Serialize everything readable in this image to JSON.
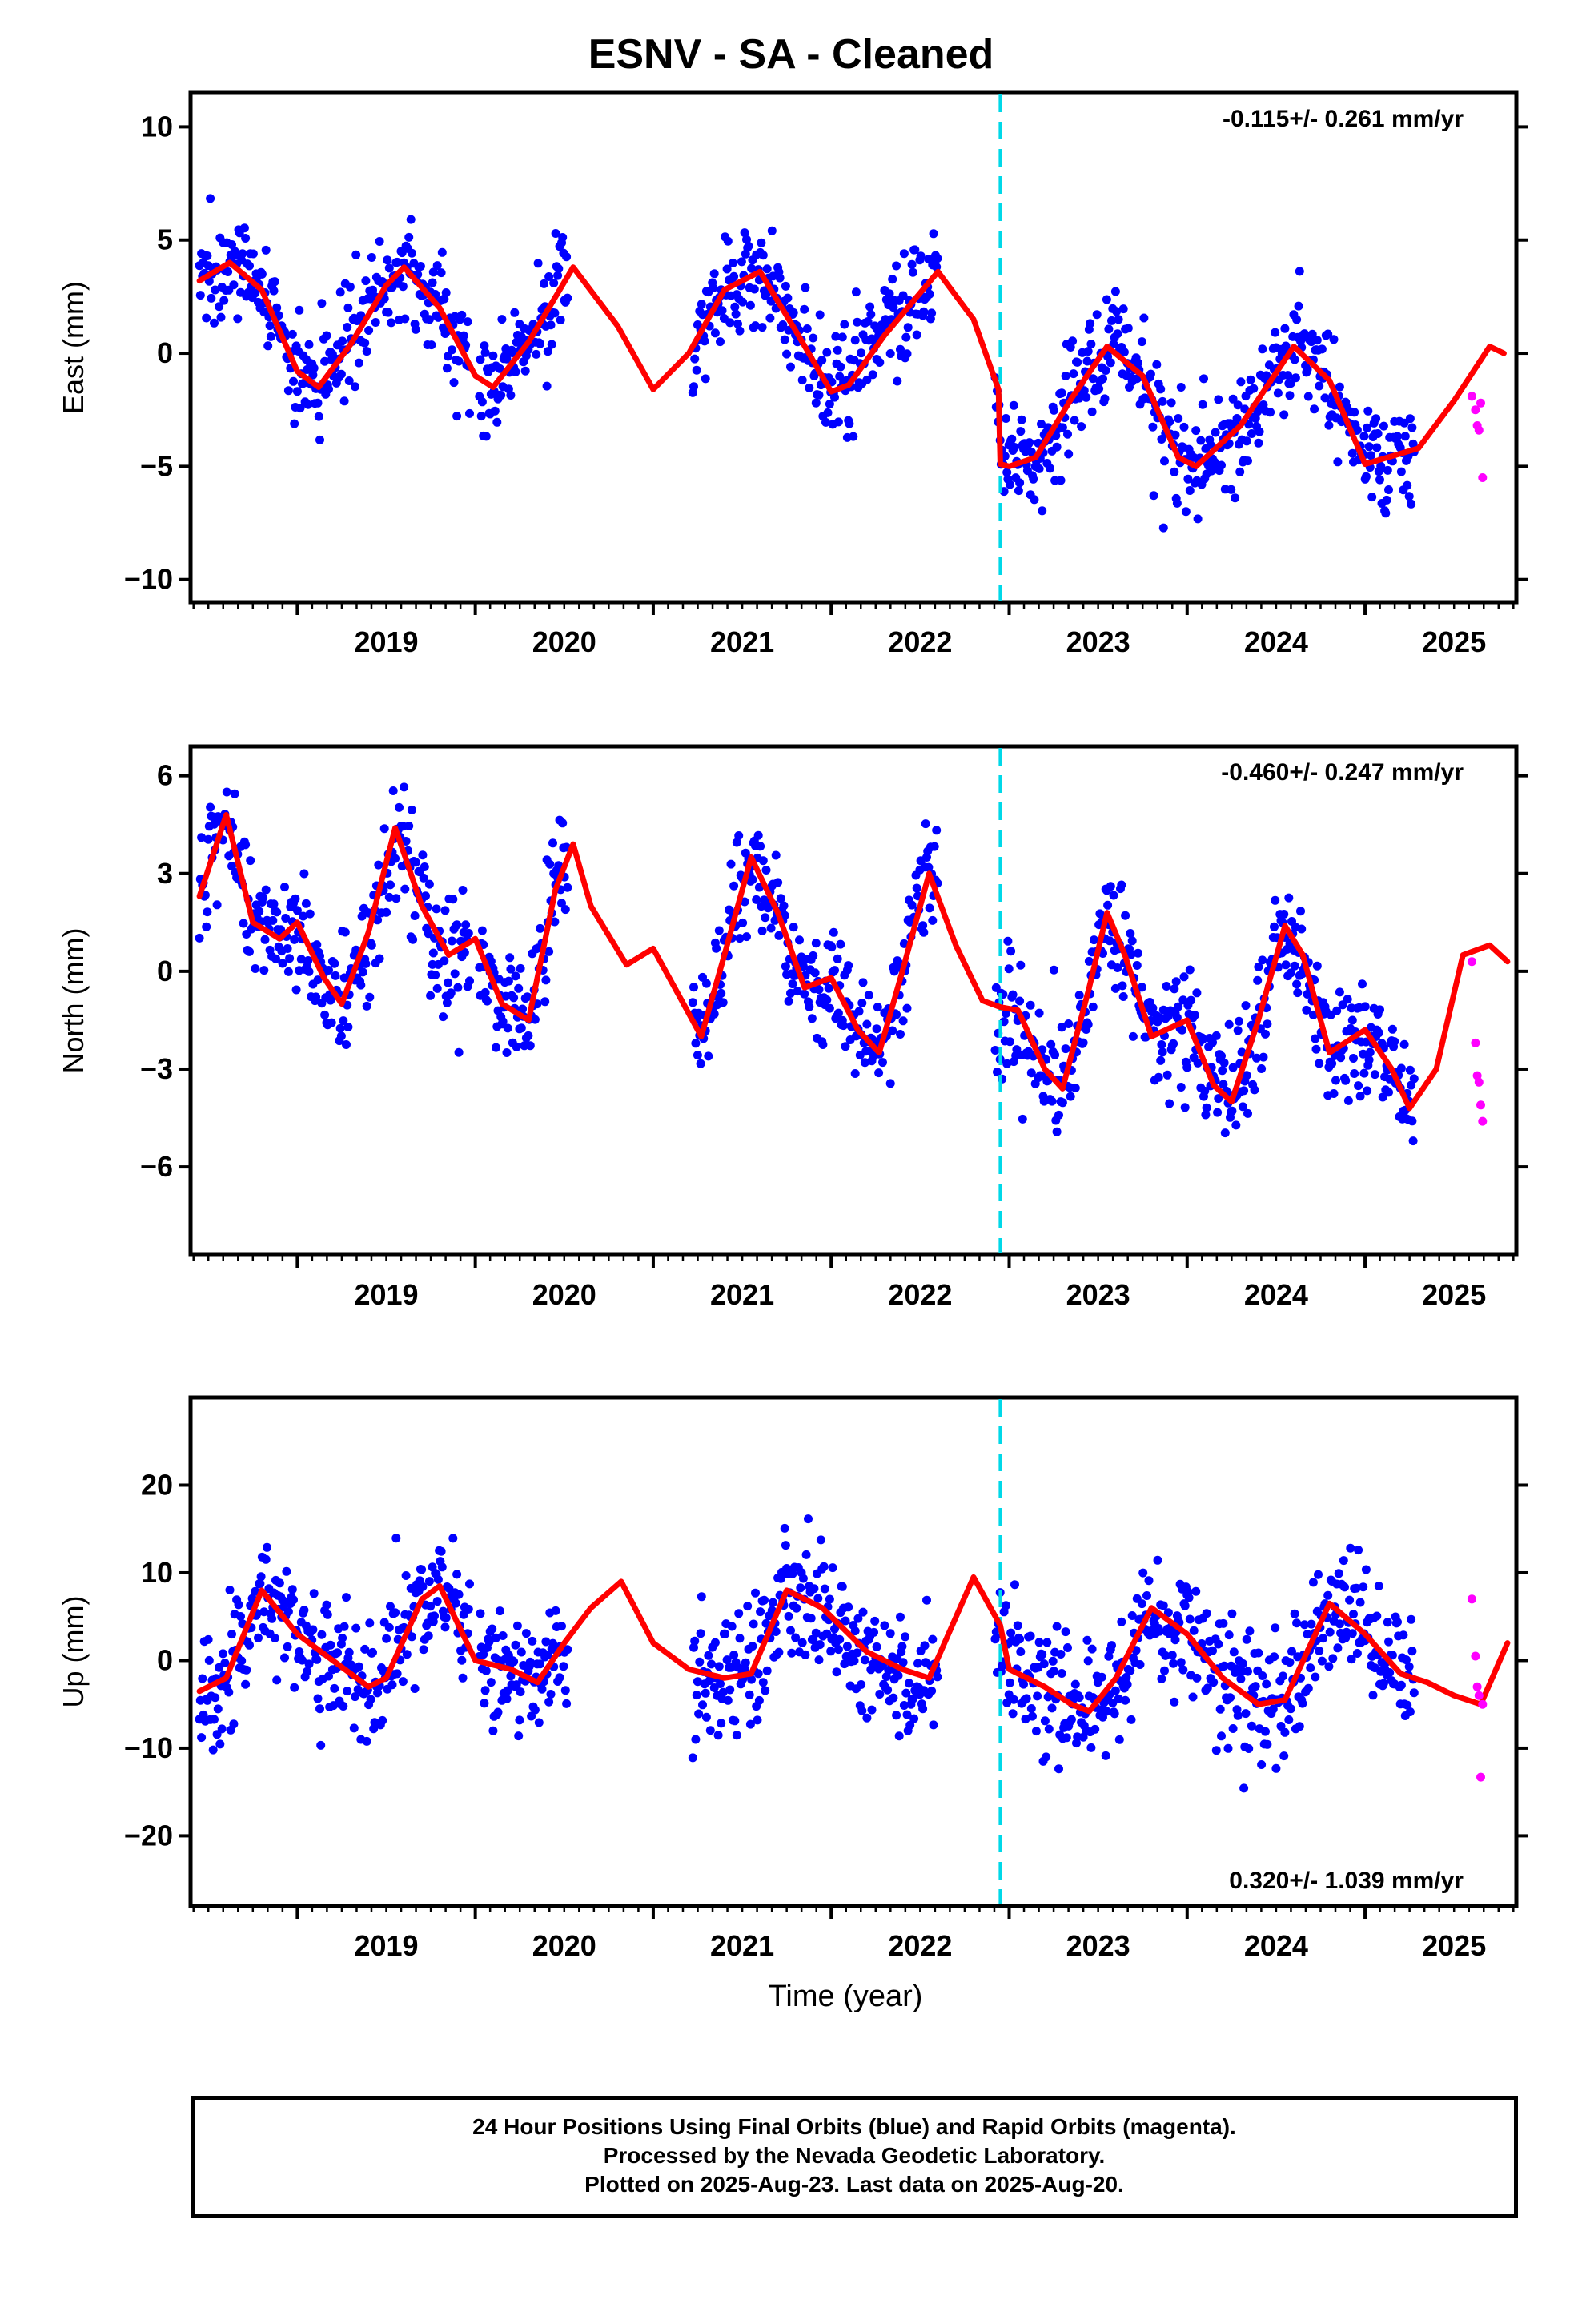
{
  "title": "ESNV  - SA - Cleaned",
  "colors": {
    "final_orbits": "#0000ff",
    "rapid_orbits": "#ff00ff",
    "model_fit": "#ff0000",
    "event_line": "#00d8e8",
    "frame": "#000000"
  },
  "chart_data": [
    {
      "type": "scatter",
      "panel": "east",
      "ylabel": "East (mm)",
      "rate_label": "-0.115+/- 0.261 mm/yr",
      "rate_position": "top-right",
      "xlim": [
        2018.4,
        2025.85
      ],
      "ylim": [
        -11,
        11.5
      ],
      "yticks": [
        -10,
        -5,
        0,
        5,
        10
      ],
      "yticklabels": [
        "−10",
        "−5",
        "0",
        "5",
        "10"
      ],
      "xticks": [
        2019,
        2020,
        2021,
        2022,
        2023,
        2024,
        2025
      ],
      "event_line_x": 2022.95,
      "model": {
        "name": "fit",
        "x": [
          2018.45,
          2018.62,
          2018.8,
          2019.0,
          2019.12,
          2019.3,
          2019.5,
          2019.6,
          2019.8,
          2020.0,
          2020.1,
          2020.3,
          2020.55,
          2020.8,
          2021.0,
          2021.2,
          2021.4,
          2021.6,
          2021.8,
          2022.0,
          2022.1,
          2022.3,
          2022.6,
          2022.8,
          2022.94,
          2022.95,
          2023.0,
          2023.15,
          2023.35,
          2023.55,
          2023.75,
          2023.95,
          2024.05,
          2024.3,
          2024.6,
          2024.8,
          2025.0,
          2025.3,
          2025.5,
          2025.7,
          2025.78
        ],
        "y": [
          3.2,
          4.0,
          2.8,
          -0.8,
          -1.5,
          0.4,
          3.0,
          3.8,
          2.0,
          -1.0,
          -1.5,
          0.5,
          3.8,
          1.2,
          -1.6,
          0.0,
          2.8,
          3.6,
          1.0,
          -1.7,
          -1.4,
          0.8,
          3.6,
          1.5,
          -1.6,
          -4.9,
          -5.0,
          -4.6,
          -2.0,
          0.3,
          -1.0,
          -4.6,
          -5.0,
          -3.2,
          0.3,
          -1.2,
          -4.9,
          -4.2,
          -2.1,
          0.3,
          0.0
        ]
      },
      "rapid_orbits": {
        "x": [
          2025.6,
          2025.62,
          2025.63,
          2025.64,
          2025.65,
          2025.66
        ],
        "y": [
          -1.9,
          -2.5,
          -3.2,
          -3.4,
          -2.2,
          -5.5
        ]
      }
    },
    {
      "type": "scatter",
      "panel": "north",
      "ylabel": "North (mm)",
      "rate_label": "-0.460+/- 0.247 mm/yr",
      "rate_position": "top-right",
      "xlim": [
        2018.4,
        2025.85
      ],
      "ylim": [
        -8.7,
        6.9
      ],
      "yticks": [
        -6,
        -3,
        0,
        3,
        6
      ],
      "yticklabels": [
        "−6",
        "−3",
        "0",
        "3",
        "6"
      ],
      "xticks": [
        2019,
        2020,
        2021,
        2022,
        2023,
        2024,
        2025
      ],
      "event_line_x": 2022.95,
      "model": {
        "name": "fit",
        "x": [
          2018.45,
          2018.6,
          2018.75,
          2018.9,
          2019.0,
          2019.15,
          2019.25,
          2019.4,
          2019.55,
          2019.7,
          2019.85,
          2020.0,
          2020.15,
          2020.3,
          2020.45,
          2020.55,
          2020.65,
          2020.85,
          2021.0,
          2021.15,
          2021.27,
          2021.4,
          2021.55,
          2021.7,
          2021.85,
          2022.0,
          2022.15,
          2022.27,
          2022.4,
          2022.55,
          2022.7,
          2022.85,
          2022.95,
          2023.05,
          2023.2,
          2023.3,
          2023.45,
          2023.55,
          2023.65,
          2023.8,
          2024.0,
          2024.15,
          2024.25,
          2024.4,
          2024.55,
          2024.65,
          2024.8,
          2025.0,
          2025.15,
          2025.25,
          2025.4,
          2025.55,
          2025.7,
          2025.8
        ],
        "y": [
          2.3,
          4.8,
          1.5,
          1.0,
          1.5,
          -0.2,
          -1.0,
          1.2,
          4.4,
          2.0,
          0.5,
          1.0,
          -1.0,
          -1.5,
          2.5,
          3.9,
          2.0,
          0.2,
          0.7,
          -0.8,
          -2.0,
          0.5,
          3.5,
          1.8,
          -0.5,
          -0.2,
          -1.8,
          -2.5,
          0.0,
          3.0,
          0.8,
          -0.9,
          -1.1,
          -1.2,
          -3.0,
          -3.6,
          -0.5,
          1.8,
          0.5,
          -2.0,
          -1.5,
          -3.5,
          -4.0,
          -1.5,
          1.4,
          0.5,
          -2.5,
          -1.8,
          -3.0,
          -4.2,
          -3.0,
          0.5,
          0.8,
          0.3
        ]
      },
      "rapid_orbits": {
        "x": [
          2025.6,
          2025.62,
          2025.63,
          2025.64,
          2025.65,
          2025.66
        ],
        "y": [
          0.3,
          -2.2,
          -3.2,
          -3.4,
          -4.1,
          -4.6
        ]
      }
    },
    {
      "type": "scatter",
      "panel": "up",
      "ylabel": "Up (mm)",
      "xlabel": "Time (year)",
      "rate_label": "0.320+/- 1.039 mm/yr",
      "rate_position": "bottom-right",
      "xlim": [
        2018.4,
        2025.85
      ],
      "ylim": [
        -28,
        30
      ],
      "yticks": [
        -20,
        -10,
        0,
        10,
        20
      ],
      "yticklabels": [
        "−20",
        "−10",
        "0",
        "10",
        "20"
      ],
      "xticks": [
        2019,
        2020,
        2021,
        2022,
        2023,
        2024,
        2025
      ],
      "event_line_x": 2022.95,
      "model": {
        "name": "fit",
        "x": [
          2018.45,
          2018.6,
          2018.8,
          2019.0,
          2019.2,
          2019.4,
          2019.5,
          2019.7,
          2019.8,
          2020.0,
          2020.2,
          2020.35,
          2020.5,
          2020.65,
          2020.82,
          2021.0,
          2021.2,
          2021.4,
          2021.55,
          2021.75,
          2021.95,
          2022.2,
          2022.4,
          2022.55,
          2022.8,
          2022.95,
          2023.0,
          2023.2,
          2023.35,
          2023.45,
          2023.6,
          2023.8,
          2024.0,
          2024.2,
          2024.4,
          2024.55,
          2024.8,
          2025.0,
          2025.2,
          2025.35,
          2025.5,
          2025.65,
          2025.8
        ],
        "y": [
          -3.5,
          -2.0,
          8.0,
          3.0,
          0.0,
          -3.0,
          -2.0,
          7.0,
          8.5,
          0.0,
          -1.0,
          -2.5,
          2.0,
          6.0,
          9.0,
          2.0,
          -1.0,
          -2.0,
          -1.5,
          8.0,
          6.0,
          1.0,
          -1.0,
          -2.0,
          9.5,
          4.0,
          -1.0,
          -3.0,
          -5.0,
          -5.8,
          -2.0,
          6.0,
          3.0,
          -2.0,
          -5.0,
          -4.5,
          6.5,
          3.0,
          -1.5,
          -2.5,
          -4.0,
          -5.0,
          2.0
        ]
      },
      "rapid_orbits": {
        "x": [
          2025.6,
          2025.62,
          2025.63,
          2025.64,
          2025.65,
          2025.66
        ],
        "y": [
          7.0,
          0.5,
          -3.0,
          -4.0,
          -13.3,
          -5.0
        ]
      }
    }
  ],
  "footer": {
    "line1": "24 Hour Positions Using Final Orbits (blue) and Rapid Orbits (magenta).",
    "line2": "Processed by the Nevada Geodetic Laboratory.",
    "line3": "Plotted on 2025-Aug-23. Last data on 2025-Aug-20."
  }
}
